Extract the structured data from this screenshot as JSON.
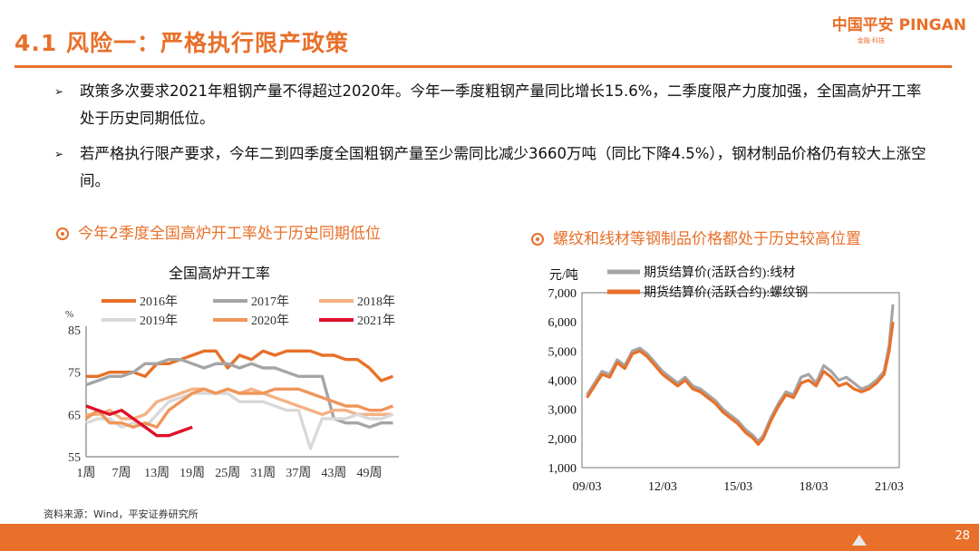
{
  "slide": {
    "title": "4.1 风险一：严格执行限产政策",
    "brand_name": "中国平安 PINGAN",
    "brand_tag": "金融·科技",
    "page_number": "28",
    "source": "资料来源：Wind，平安证券研究所"
  },
  "bullets": [
    {
      "marker": "➢",
      "text": "政策多次要求2021年粗钢产量不得超过2020年。今年一季度粗钢产量同比增长15.6%，二季度限产力度加强，全国高炉开工率处于历史同期低位。"
    },
    {
      "marker": "➢",
      "text": "若严格执行限产要求，今年二到四季度全国粗钢产量至少需同比减少3660万吨（同比下降4.5%），钢材制品价格仍有较大上涨空间。"
    }
  ],
  "sections": {
    "left_heading": "今年2季度全国高炉开工率处于历史同期低位",
    "right_heading": "螺纹和线材等钢制品价格都处于历史较高位置"
  },
  "chart_data": [
    {
      "type": "line",
      "title": "全国高炉开工率",
      "ylabel": "%",
      "xlabel": "",
      "ylim": [
        55,
        85
      ],
      "y_ticks": [
        55,
        65,
        75,
        85
      ],
      "x_ticks": [
        "1周",
        "7周",
        "13周",
        "19周",
        "25周",
        "31周",
        "37周",
        "43周",
        "49周"
      ],
      "legend_position": "top",
      "x": [
        1,
        3,
        5,
        7,
        9,
        11,
        13,
        15,
        17,
        19,
        21,
        23,
        25,
        27,
        29,
        31,
        33,
        35,
        37,
        39,
        41,
        43,
        45,
        47,
        49,
        51,
        53
      ],
      "series": [
        {
          "name": "2016年",
          "color": "#e8702a",
          "width": 3.4,
          "values": [
            74,
            74,
            75,
            75,
            75,
            74,
            77,
            77,
            78,
            79,
            80,
            80,
            76,
            79,
            78,
            80,
            79,
            80,
            80,
            80,
            79,
            79,
            78,
            78,
            76,
            73,
            74
          ]
        },
        {
          "name": "2017年",
          "color": "#a5a5a5",
          "width": 3.4,
          "values": [
            72,
            73,
            74,
            74,
            75,
            77,
            77,
            78,
            78,
            77,
            76,
            77,
            77,
            76,
            77,
            76,
            76,
            75,
            74,
            74,
            74,
            64,
            63,
            63,
            62,
            63,
            63
          ]
        },
        {
          "name": "2018年",
          "color": "#f4b183",
          "width": 3.4,
          "values": [
            65,
            65,
            66,
            64,
            64,
            65,
            68,
            69,
            70,
            71,
            71,
            70,
            71,
            70,
            71,
            70,
            69,
            68,
            67,
            66,
            65,
            66,
            66,
            65,
            65,
            65,
            65
          ]
        },
        {
          "name": "2019年",
          "color": "#d9d9d9",
          "width": 3.4,
          "values": [
            63,
            64,
            64,
            62,
            63,
            62,
            65,
            68,
            69,
            70,
            70,
            70,
            70,
            68,
            68,
            68,
            67,
            66,
            66,
            57,
            64,
            64,
            64,
            65,
            64,
            64,
            65
          ]
        },
        {
          "name": "2020年",
          "color": "#f0955a",
          "width": 3.4,
          "values": [
            64,
            66,
            63,
            63,
            62,
            63,
            62,
            66,
            68,
            70,
            71,
            70,
            71,
            70,
            70,
            70,
            71,
            71,
            71,
            70,
            69,
            68,
            67,
            67,
            66,
            66,
            67
          ]
        },
        {
          "name": "2021年",
          "color": "#e0102a",
          "width": 3.4,
          "values": [
            67,
            66,
            65,
            66,
            64,
            62,
            60,
            60,
            61,
            62,
            null,
            null,
            null,
            null,
            null,
            null,
            null,
            null,
            null,
            null,
            null,
            null,
            null,
            null,
            null,
            null,
            null
          ]
        }
      ]
    },
    {
      "type": "line",
      "title": "",
      "ylabel": "元/吨",
      "xlabel": "",
      "ylim": [
        1000,
        7000
      ],
      "y_ticks": [
        "1,000",
        "2,000",
        "3,000",
        "4,000",
        "5,000",
        "6,000",
        "7,000"
      ],
      "x_ticks": [
        "09/03",
        "12/03",
        "15/03",
        "18/03",
        "21/03"
      ],
      "legend_position": "top-left",
      "x": [
        2009.2,
        2009.5,
        2009.8,
        2010.1,
        2010.4,
        2010.7,
        2011.0,
        2011.3,
        2011.6,
        2011.9,
        2012.2,
        2012.5,
        2012.8,
        2013.1,
        2013.4,
        2013.7,
        2014.0,
        2014.3,
        2014.6,
        2014.9,
        2015.2,
        2015.5,
        2015.8,
        2016.0,
        2016.2,
        2016.5,
        2016.8,
        2017.1,
        2017.4,
        2017.7,
        2018.0,
        2018.3,
        2018.6,
        2018.9,
        2019.2,
        2019.5,
        2019.8,
        2020.1,
        2020.4,
        2020.7,
        2021.0,
        2021.2,
        2021.35
      ],
      "series": [
        {
          "name": "期货结算价(活跃合约):线材",
          "color": "#a5a5a5",
          "width": 3.2,
          "values": [
            3500,
            3900,
            4300,
            4200,
            4700,
            4500,
            5000,
            5100,
            4900,
            4600,
            4300,
            4100,
            3900,
            4100,
            3800,
            3700,
            3500,
            3300,
            3000,
            2800,
            2600,
            2300,
            2100,
            1900,
            2100,
            2700,
            3200,
            3600,
            3500,
            4100,
            4200,
            3900,
            4500,
            4300,
            4000,
            4100,
            3900,
            3700,
            3800,
            4000,
            4300,
            5200,
            6600
          ]
        },
        {
          "name": "期货结算价(活跃合约):螺纹钢",
          "color": "#e8702a",
          "width": 3.2,
          "values": [
            3400,
            3800,
            4200,
            4100,
            4600,
            4400,
            4900,
            5000,
            4800,
            4500,
            4200,
            4000,
            3800,
            4000,
            3700,
            3600,
            3400,
            3200,
            2900,
            2700,
            2500,
            2200,
            2000,
            1800,
            2000,
            2600,
            3100,
            3500,
            3400,
            3900,
            4000,
            3800,
            4300,
            4100,
            3800,
            3900,
            3700,
            3600,
            3700,
            3900,
            4200,
            5000,
            6000
          ]
        }
      ]
    }
  ]
}
